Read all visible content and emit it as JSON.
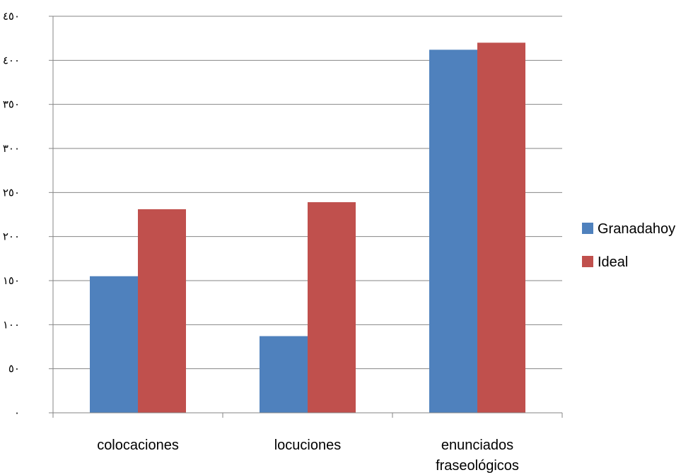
{
  "chart_data": {
    "type": "bar",
    "categories": [
      [
        "colocaciones"
      ],
      [
        "locuciones"
      ],
      [
        "enunciados",
        "fraseológicos"
      ]
    ],
    "series": [
      {
        "name": "Granadahoy",
        "values": [
          155,
          87,
          412
        ],
        "color": "#4F81BD"
      },
      {
        "name": "Ideal",
        "values": [
          231,
          239,
          420
        ],
        "color": "#C0504D"
      }
    ],
    "ylim": [
      0,
      450
    ],
    "yticks": [
      0,
      50,
      100,
      150,
      200,
      250,
      300,
      350,
      400,
      450
    ],
    "ytick_labels": [
      "٠",
      "٥٠",
      "١٠٠",
      "١٥٠",
      "٢٠٠",
      "٢٥٠",
      "٣٠٠",
      "٣٥٠",
      "٤٠٠",
      "٤٥٠"
    ],
    "grid": true,
    "legend_position": "right",
    "title": "",
    "xlabel": "",
    "ylabel": ""
  }
}
